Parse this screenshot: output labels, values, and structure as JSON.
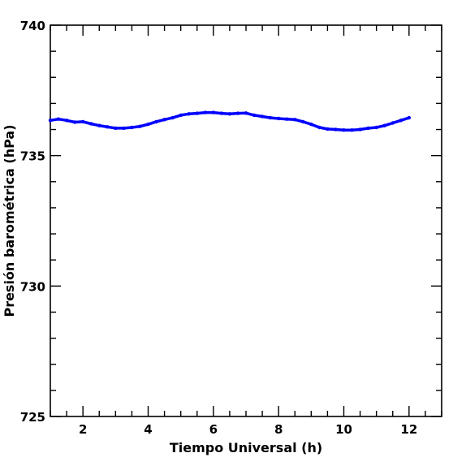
{
  "chart_data": {
    "type": "line",
    "title": "",
    "xlabel": "Tiempo Universal (h)",
    "ylabel": "Presión barométrica (hPa)",
    "xlim": [
      1,
      13
    ],
    "ylim": [
      725,
      740
    ],
    "x_major_ticks": [
      2,
      4,
      6,
      8,
      10,
      12
    ],
    "x_tick_labels": [
      "2",
      "4",
      "6",
      "8",
      "10",
      "12"
    ],
    "x_minor_step": 0.5,
    "y_major_ticks": [
      725,
      730,
      735,
      740
    ],
    "y_tick_labels": [
      "725",
      "730",
      "735",
      "740"
    ],
    "y_minor_step": 1,
    "grid": false,
    "legend": "none",
    "series": [
      {
        "color": "#0000ff",
        "x": [
          1.0,
          1.25,
          1.5,
          1.75,
          2.0,
          2.25,
          2.5,
          2.75,
          3.0,
          3.25,
          3.5,
          3.75,
          4.0,
          4.25,
          4.5,
          4.75,
          5.0,
          5.25,
          5.5,
          5.75,
          6.0,
          6.25,
          6.5,
          6.75,
          7.0,
          7.25,
          7.5,
          7.75,
          8.0,
          8.25,
          8.5,
          8.75,
          9.0,
          9.25,
          9.5,
          9.75,
          10.0,
          10.25,
          10.5,
          10.75,
          11.0,
          11.25,
          11.5,
          11.75,
          12.0
        ],
        "y": [
          736.35,
          736.4,
          736.35,
          736.28,
          736.3,
          736.22,
          736.15,
          736.1,
          736.05,
          736.05,
          736.08,
          736.12,
          736.2,
          736.3,
          736.38,
          736.45,
          736.55,
          736.6,
          736.62,
          736.65,
          736.65,
          736.62,
          736.6,
          736.62,
          736.63,
          736.55,
          736.5,
          736.45,
          736.42,
          736.4,
          736.38,
          736.3,
          736.2,
          736.08,
          736.02,
          736.0,
          735.98,
          735.98,
          736.0,
          736.05,
          736.08,
          736.15,
          736.25,
          736.35,
          736.45
        ]
      }
    ]
  }
}
